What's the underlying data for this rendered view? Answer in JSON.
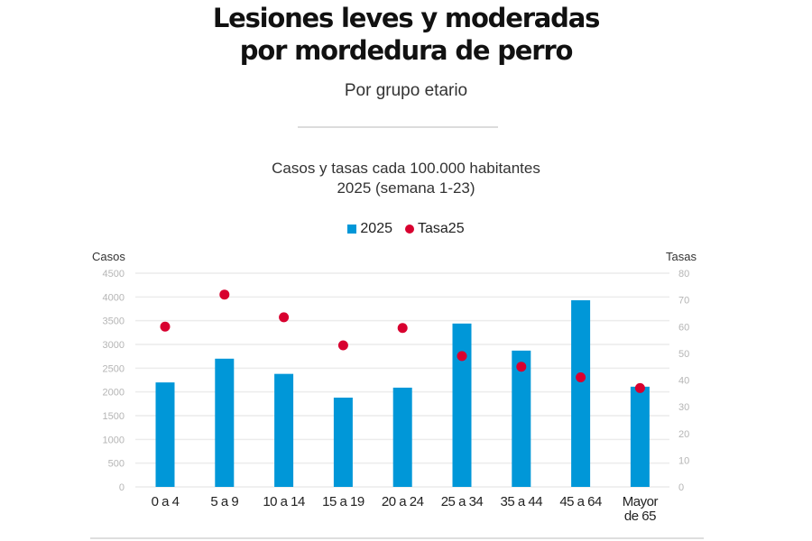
{
  "header": {
    "title_line1": "Lesiones leves y moderadas",
    "title_line2": "por mordedura de perro",
    "subtitle": "Por grupo etario"
  },
  "colors": {
    "bar": "#0097d8",
    "dot": "#d8002f",
    "grid": "#ececec",
    "tick": "#b5b5b5"
  },
  "chart_data": {
    "type": "bar",
    "title": "Casos y tasas cada 100.000 habitantes",
    "subtitle": "2025 (semana 1-23)",
    "xlabel": "",
    "ylabel": "Casos",
    "ylabel_right": "Tasas",
    "ylim": [
      0,
      4500
    ],
    "ylim_right": [
      0,
      80
    ],
    "yticks": [
      "0",
      "500",
      "1000",
      "1500",
      "2000",
      "2500",
      "3000",
      "3500",
      "4000",
      "4500"
    ],
    "yticks_right": [
      "0",
      "10",
      "20",
      "30",
      "40",
      "50",
      "60",
      "70",
      "80"
    ],
    "grid": true,
    "legend_position": "top-center",
    "categories": [
      "0 a 4",
      "5 a 9",
      "10 a 14",
      "15 a 19",
      "20 a 24",
      "25 a 34",
      "35 a 44",
      "45 a 64",
      "Mayor de 65"
    ],
    "category_lines": [
      [
        "0 a 4"
      ],
      [
        "5 a 9"
      ],
      [
        "10 a 14"
      ],
      [
        "15 a 19"
      ],
      [
        "20 a 24"
      ],
      [
        "25 a 34"
      ],
      [
        "35 a 44"
      ],
      [
        "45 a 64"
      ],
      [
        "Mayor",
        "de 65"
      ]
    ],
    "series": [
      {
        "name": "2025",
        "type": "bar",
        "axis": "left",
        "values": [
          2200,
          2700,
          2380,
          1880,
          2090,
          3440,
          2870,
          3930,
          2110
        ]
      },
      {
        "name": "Tasa25",
        "type": "scatter",
        "axis": "right",
        "values": [
          60,
          72,
          63.5,
          53,
          59.5,
          49,
          45,
          41,
          37
        ]
      }
    ]
  }
}
